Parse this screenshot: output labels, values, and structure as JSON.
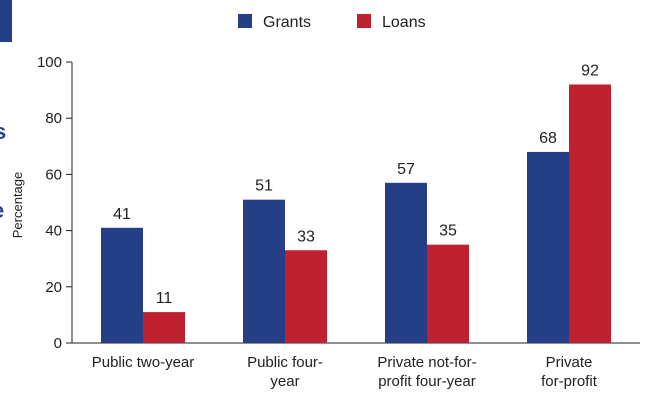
{
  "chart_data": {
    "type": "bar",
    "categories": [
      [
        "Public two-year"
      ],
      [
        "Public four-",
        "year"
      ],
      [
        "Private not-for-",
        "profit four-year"
      ],
      [
        "Private",
        "for-profit"
      ]
    ],
    "series": [
      {
        "name": "Grants",
        "values": [
          41,
          51,
          57,
          68
        ],
        "color": "#243f85"
      },
      {
        "name": "Loans",
        "values": [
          11,
          33,
          35,
          92
        ],
        "color": "#bf2130"
      }
    ],
    "ylabel": "Percentage",
    "ylim": [
      0,
      100
    ],
    "yticks": [
      0,
      20,
      40,
      60,
      80,
      100
    ],
    "legend_position": "top",
    "grid": false
  },
  "colors": {
    "accent_bar": "#243f85",
    "partial_text": "#2c3f8f"
  }
}
